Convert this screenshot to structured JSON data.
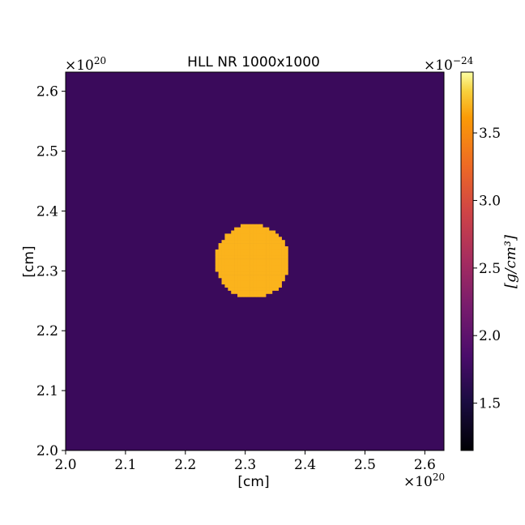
{
  "chart_data": {
    "type": "heatmap",
    "title": "HLL NR 1000x1000",
    "xlabel": "[cm]",
    "ylabel": "[cm]",
    "x_multiplier": "×10",
    "x_multiplier_exp": "20",
    "y_multiplier": "×10",
    "y_multiplier_exp": "20",
    "xlim": [
      2.0,
      2.632
    ],
    "ylim": [
      2.0,
      2.632
    ],
    "x_ticks": [
      2.0,
      2.1,
      2.2,
      2.3,
      2.4,
      2.5,
      2.6
    ],
    "x_tick_labels": [
      "2.0",
      "2.1",
      "2.2",
      "2.3",
      "2.4",
      "2.5",
      "2.6"
    ],
    "y_ticks": [
      2.0,
      2.1,
      2.2,
      2.3,
      2.4,
      2.5,
      2.6
    ],
    "y_tick_labels": [
      "2.0",
      "2.1",
      "2.2",
      "2.3",
      "2.4",
      "2.5",
      "2.6"
    ],
    "colormap": "inferno",
    "background_value": 1.75,
    "blob": {
      "center": [
        2.312,
        2.316
      ],
      "radius": 0.062,
      "value": 3.6,
      "color": "#fbb31c"
    },
    "background_color": "#3a0a5b",
    "colorbar": {
      "label": "[g/cm³]",
      "multiplier": "×10",
      "multiplier_exp": "−24",
      "range": [
        1.15,
        3.95
      ],
      "ticks": [
        1.5,
        2.0,
        2.5,
        3.0,
        3.5
      ],
      "tick_labels": [
        "1.5",
        "2.0",
        "2.5",
        "3.0",
        "3.5"
      ]
    }
  }
}
